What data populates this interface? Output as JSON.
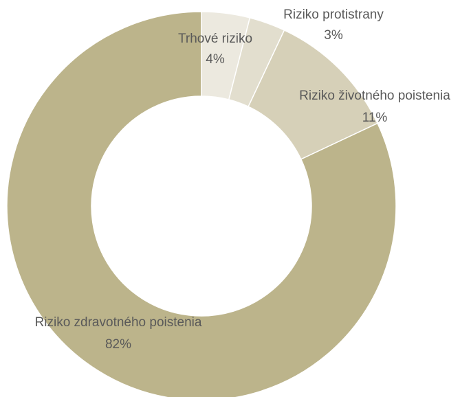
{
  "chart_data": {
    "type": "donut",
    "categories": [
      "Trhové riziko",
      "Riziko protistrany",
      "Riziko životného poistenia",
      "Riziko zdravotného poistenia"
    ],
    "values": [
      4,
      3,
      11,
      82
    ],
    "value_labels": [
      "4%",
      "3%",
      "11%",
      "82%"
    ],
    "colors": [
      "#ece9df",
      "#e2dece",
      "#d6d0b8",
      "#bcb48b"
    ]
  }
}
